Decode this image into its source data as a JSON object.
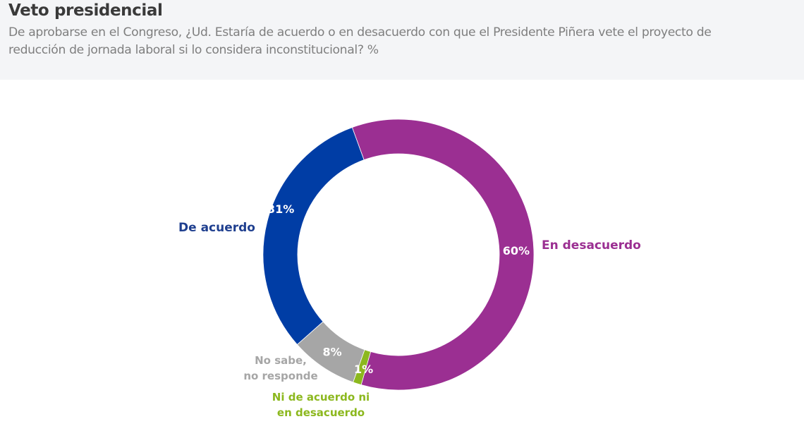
{
  "header": {
    "title": "Veto presidencial",
    "subtitle_line1": "De aprobarse en el Congreso, ¿Ud. Estaría de acuerdo o en desacuerdo con que el Presidente Piñera vete el proyecto de",
    "subtitle_line2": "reducción de jornada laboral si lo considera inconstitucional?  %"
  },
  "chart_data": {
    "type": "pie",
    "variant": "donut",
    "title": "Veto presidencial",
    "subtitle": "De aprobarse en el Congreso, ¿Ud. Estaría de acuerdo o en desacuerdo con que el Presidente Piñera vete el proyecto de reducción de jornada laboral si lo considera inconstitucional?  %",
    "unit": "%",
    "slices": [
      {
        "key": "en-desacuerdo",
        "label": [
          "En desacuerdo"
        ],
        "value": 60,
        "value_label": "60%",
        "color": "#9b2f92",
        "label_color": "#9b2f92",
        "value_label_color": "#ffffff"
      },
      {
        "key": "ni-de-acuerdo",
        "label": [
          "Ni de acuerdo ni",
          "en desacuerdo"
        ],
        "value": 1,
        "value_label": "1%",
        "color": "#8cb81e",
        "label_color": "#8cb81e",
        "value_label_color": "#ffffff"
      },
      {
        "key": "no-sabe",
        "label": [
          "No sabe,",
          "no responde"
        ],
        "value": 8,
        "value_label": "8%",
        "color": "#a6a6a6",
        "label_color": "#a6a6a6",
        "value_label_color": "#ffffff"
      },
      {
        "key": "de-acuerdo",
        "label": [
          "De acuerdo"
        ],
        "value": 31,
        "value_label": "31%",
        "color": "#003da5",
        "label_color": "#1f3f8f",
        "value_label_color": "#ffffff"
      }
    ],
    "legend": "none (direct labels)"
  }
}
